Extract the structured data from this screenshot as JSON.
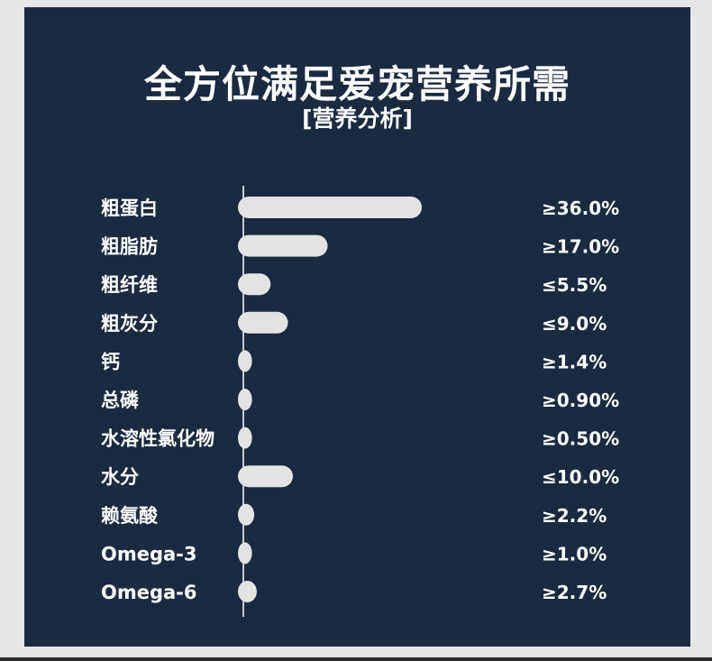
{
  "chart_data": {
    "type": "bar",
    "orientation": "horizontal",
    "title": "全方位满足爱宠营养所需",
    "subtitle": "[营养分析]",
    "categories": [
      "粗蛋白",
      "粗脂肪",
      "粗纤维",
      "粗灰分",
      "钙",
      "总磷",
      "水溶性氯化物",
      "水分",
      "赖氨酸",
      "Omega-3",
      "Omega-6"
    ],
    "values": [
      36.0,
      17.0,
      5.5,
      9.0,
      1.4,
      0.9,
      0.5,
      10.0,
      2.2,
      1.0,
      2.7
    ],
    "value_labels": [
      "≥36.0%",
      "≥17.0%",
      "≤5.5%",
      "≤9.0%",
      "≥1.4%",
      "≥0.90%",
      "≥0.50%",
      "≤10.0%",
      "≥2.2%",
      "≥1.0%",
      "≥2.7%"
    ],
    "unit": "%",
    "xlim": [
      0,
      36
    ],
    "grid": false,
    "legend": "none",
    "colors": {
      "background": "#1b2a40",
      "bar": "#e3e3e3",
      "text": "#ffffff",
      "axis": "#ffffff",
      "outer": "#e6e6e6"
    }
  }
}
